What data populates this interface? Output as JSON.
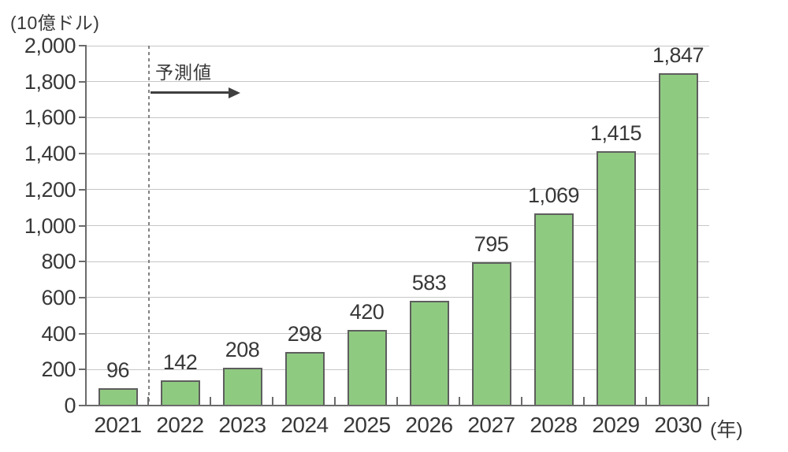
{
  "chart": {
    "unit_label": "(10億ドル)",
    "forecast_label": "予測値",
    "year_suffix_label": "(年)",
    "colors": {
      "bar_fill": "#8fca81",
      "bar_border": "#5e5e5e",
      "gridline": "#c6c6c6",
      "axis": "#6b6b6b",
      "text": "#383838",
      "forecast_divider": "#828282",
      "arrow": "#3f3f3f"
    }
  },
  "chart_data": {
    "type": "bar",
    "title": "",
    "categories": [
      "2021",
      "2022",
      "2023",
      "2024",
      "2025",
      "2026",
      "2027",
      "2028",
      "2029",
      "2030"
    ],
    "values": [
      96,
      142,
      208,
      298,
      420,
      583,
      795,
      1069,
      1415,
      1847
    ],
    "value_labels": [
      "96",
      "142",
      "208",
      "298",
      "420",
      "583",
      "795",
      "1,069",
      "1,415",
      "1,847"
    ],
    "xlabel": "(年)",
    "ylabel": "(10億ドル)",
    "ylim": [
      0,
      2000
    ],
    "y_tick_step": 200,
    "y_tick_labels": [
      "0",
      "200",
      "400",
      "600",
      "800",
      "1,000",
      "1,200",
      "1,400",
      "1,600",
      "1,800",
      "2,000"
    ],
    "grid": true,
    "legend": false,
    "annotation": {
      "label": "予測値",
      "type": "dashed-vertical-divider-with-right-arrow",
      "divider_after_category": "2021"
    }
  }
}
